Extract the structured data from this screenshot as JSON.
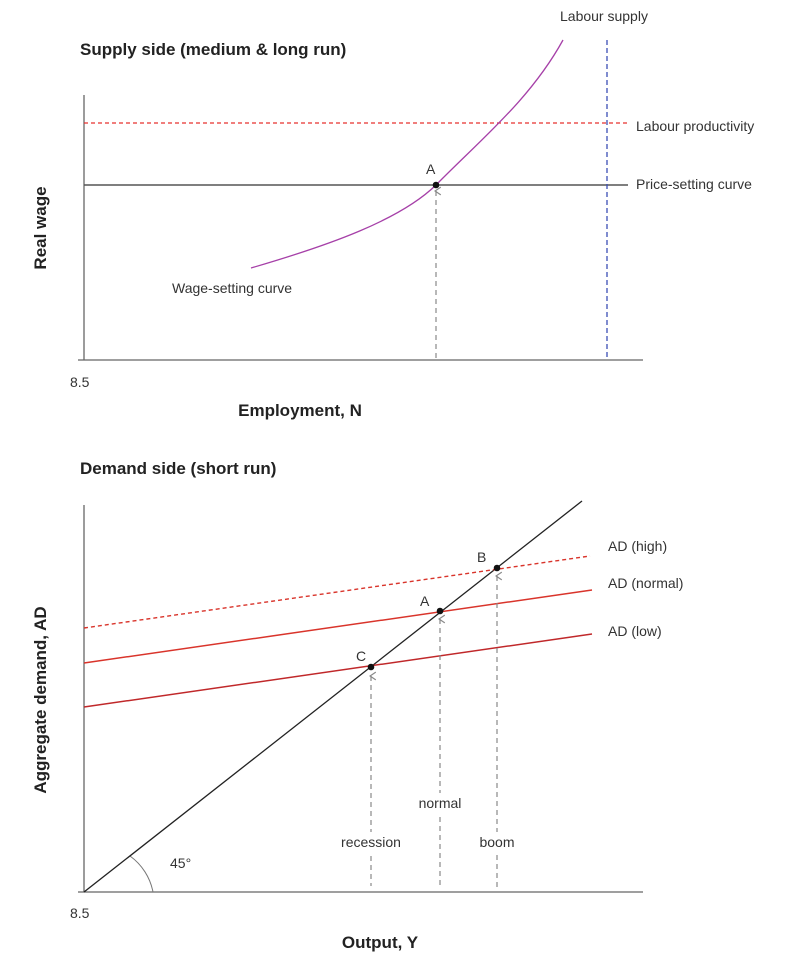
{
  "supply": {
    "title": "Supply side (medium & long run)",
    "y_label": "Real wage",
    "x_label": "Employment, N",
    "origin_tick": "8.5",
    "labour_supply": "Labour supply",
    "labour_productivity": "Labour productivity",
    "price_setting": "Price-setting curve",
    "wage_setting": "Wage-setting curve",
    "point_a": "A",
    "colors": {
      "productivity": "#e8312f",
      "labour_supply": "#3b4fb5",
      "wage_setting": "#a640a8",
      "price_setting": "#555555"
    }
  },
  "demand": {
    "title": "Demand side (short run)",
    "y_label": "Aggregate demand, AD",
    "x_label": "Output, Y",
    "origin_tick": "8.5",
    "ad_high": "AD (high)",
    "ad_normal": "AD (normal)",
    "ad_low": "AD (low)",
    "point_a": "A",
    "point_b": "B",
    "point_c": "C",
    "recession": "recession",
    "normal": "normal",
    "boom": "boom",
    "angle": "45°",
    "colors": {
      "ad": "#d9342b",
      "ad_low": "#c0282a"
    }
  }
}
